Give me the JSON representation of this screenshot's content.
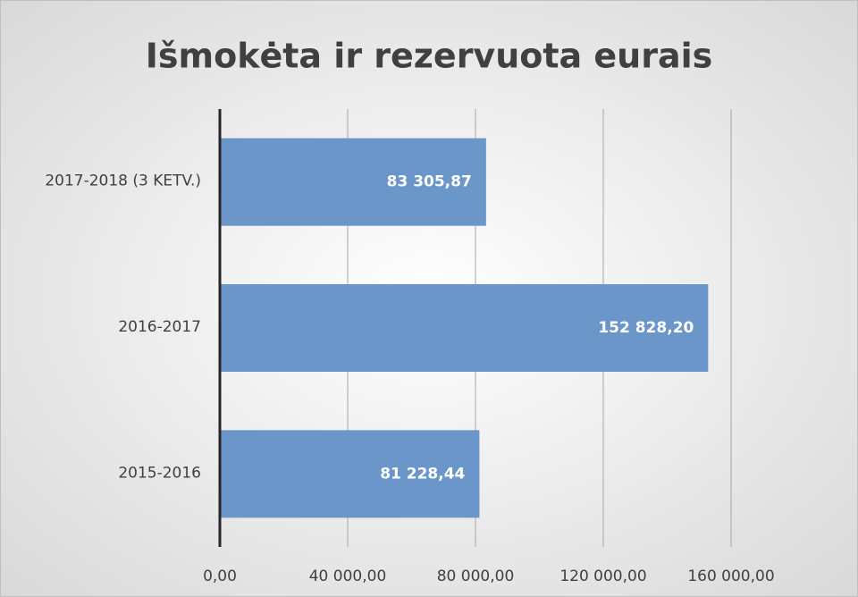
{
  "chart_data": {
    "type": "barh",
    "title": "Išmokėta ir rezervuota eurais",
    "categories": [
      "2017-2018 (3 KETV.)",
      "2016-2017",
      "2015-2016"
    ],
    "values": [
      83305.87,
      152828.2,
      81228.44
    ],
    "value_labels": [
      "83 305,87",
      "152 828,20",
      "81 228,44"
    ],
    "color": "#6b96c9",
    "xlim": [
      0,
      160000
    ],
    "xticks": [
      {
        "value": 0,
        "label": "0,00"
      },
      {
        "value": 40000,
        "label": "40 000,00"
      },
      {
        "value": 80000,
        "label": "80 000,00"
      },
      {
        "value": 120000,
        "label": "120 000,00"
      },
      {
        "value": 160000,
        "label": "160 000,00"
      }
    ],
    "grid": true
  }
}
